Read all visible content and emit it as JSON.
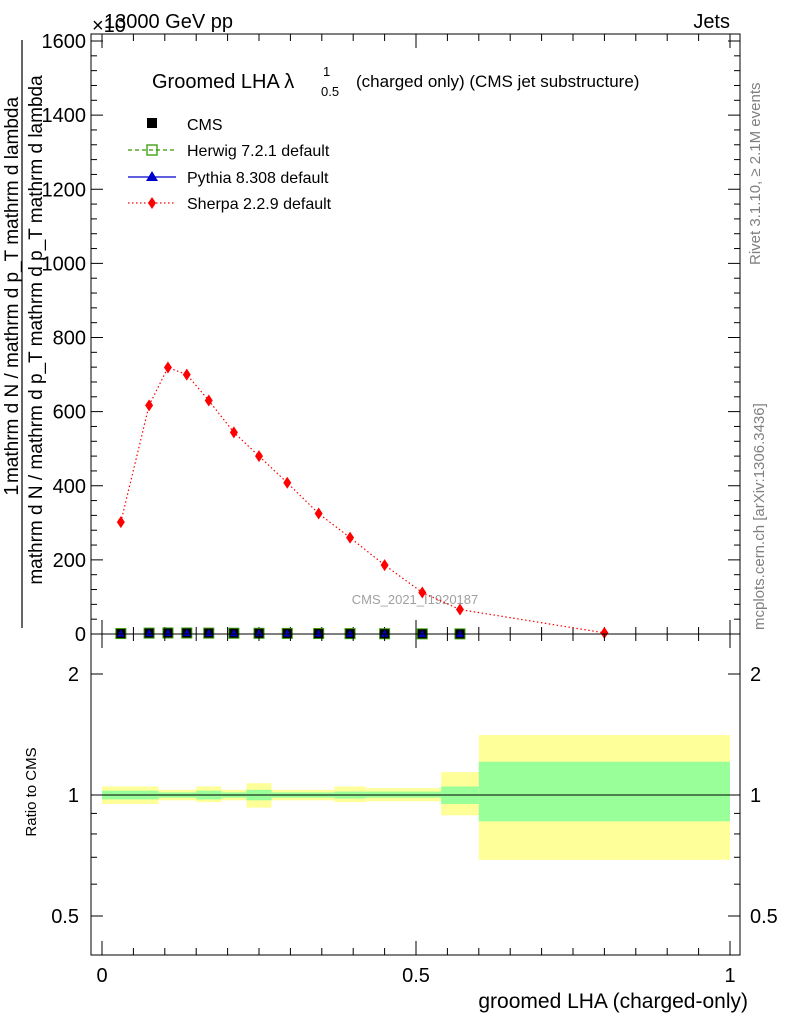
{
  "header": {
    "left": "13000 GeV pp",
    "right": "Jets",
    "exponent": "×10"
  },
  "side_labels": {
    "rivet": "Rivet 3.1.10, ≥ 2.1M events",
    "mcplots": "mcplots.cern.ch [arXiv:1306.3436]"
  },
  "watermark": "CMS_2021_I1920187",
  "chart_data": [
    {
      "type": "line",
      "title": "Groomed LHA λ",
      "title_sup": "1",
      "title_sub": "0.5",
      "title_suffix": "(charged only) (CMS jet substructure)",
      "ylabel_top": "1",
      "ylabel_num": "mathrm d N / mathrm d p_T mathrm d lambda",
      "ylabel_den": "mathrm d N / mathrm d p_T mathrm d p_T mathrm d lambda",
      "ylim": [
        0,
        1600
      ],
      "yticks": [
        "0",
        "200",
        "400",
        "600",
        "800",
        "1000",
        "1200",
        "1400",
        "1600"
      ],
      "xlim": [
        0,
        1
      ],
      "legend_position": "top-left",
      "legend": [
        "CMS",
        "Herwig 7.2.1 default",
        "Pythia 8.308 default",
        "Sherpa 2.2.9 default"
      ],
      "series": [
        {
          "name": "CMS",
          "color": "#000000",
          "marker": "square",
          "x": [
            0.03,
            0.075,
            0.105,
            0.135,
            0.17,
            0.21,
            0.25,
            0.295,
            0.345,
            0.395,
            0.45,
            0.51,
            0.57
          ],
          "y": [
            1.2,
            2.4,
            2.8,
            2.7,
            2.4,
            2.1,
            1.9,
            1.6,
            1.3,
            1.0,
            0.7,
            0.4,
            0.25
          ]
        },
        {
          "name": "Sherpa 2.2.9 default",
          "color": "#ff0000",
          "marker": "diamond",
          "x": [
            0.03,
            0.075,
            0.105,
            0.135,
            0.17,
            0.21,
            0.25,
            0.295,
            0.345,
            0.395,
            0.45,
            0.51,
            0.57,
            0.8
          ],
          "y": [
            302,
            617,
            719,
            700,
            630,
            544,
            480,
            408,
            325,
            260,
            186,
            112,
            66,
            3
          ]
        }
      ]
    },
    {
      "type": "area",
      "ylabel": "Ratio to CMS",
      "xlabel": "groomed LHA (charged-only)",
      "xticks": [
        "0",
        "0.5",
        "1"
      ],
      "yticks_left": [
        "0.5",
        "1",
        "2"
      ],
      "yticks_right": [
        "0.5",
        "1",
        "2"
      ],
      "ylim": [
        0.4,
        2.3
      ],
      "bands": [
        {
          "x0": 0.0,
          "x1": 0.09,
          "inner": [
            0.975,
            1.025
          ],
          "outer": [
            0.95,
            1.05
          ]
        },
        {
          "x0": 0.09,
          "x1": 0.15,
          "inner": [
            0.985,
            1.015
          ],
          "outer": [
            0.97,
            1.03
          ]
        },
        {
          "x0": 0.15,
          "x1": 0.19,
          "inner": [
            0.975,
            1.025
          ],
          "outer": [
            0.96,
            1.05
          ]
        },
        {
          "x0": 0.19,
          "x1": 0.23,
          "inner": [
            0.985,
            1.015
          ],
          "outer": [
            0.97,
            1.03
          ]
        },
        {
          "x0": 0.23,
          "x1": 0.27,
          "inner": [
            0.97,
            1.03
          ],
          "outer": [
            0.93,
            1.07
          ]
        },
        {
          "x0": 0.27,
          "x1": 0.37,
          "inner": [
            0.985,
            1.015
          ],
          "outer": [
            0.97,
            1.03
          ]
        },
        {
          "x0": 0.37,
          "x1": 0.42,
          "inner": [
            0.98,
            1.02
          ],
          "outer": [
            0.96,
            1.05
          ]
        },
        {
          "x0": 0.42,
          "x1": 0.54,
          "inner": [
            0.985,
            1.02
          ],
          "outer": [
            0.965,
            1.04
          ]
        },
        {
          "x0": 0.54,
          "x1": 0.6,
          "inner": [
            0.95,
            1.05
          ],
          "outer": [
            0.89,
            1.14
          ]
        },
        {
          "x0": 0.6,
          "x1": 1.0,
          "inner": [
            0.86,
            1.21
          ],
          "outer": [
            0.69,
            1.41
          ]
        }
      ]
    }
  ]
}
